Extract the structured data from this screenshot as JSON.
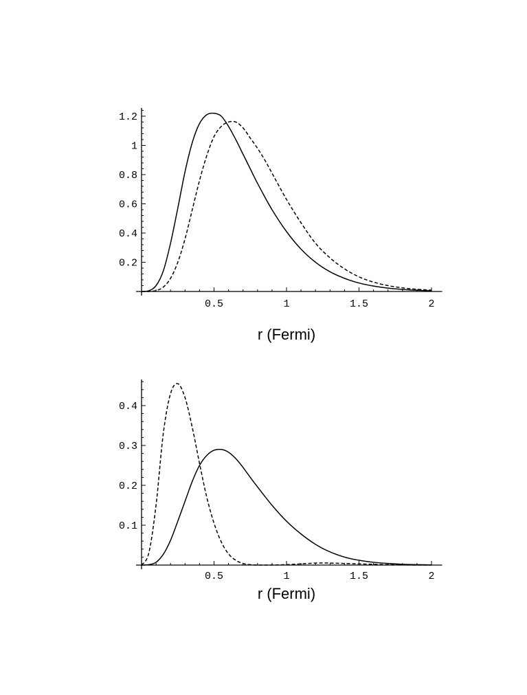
{
  "chart_data": [
    {
      "type": "line",
      "title": "",
      "xlabel": "r (Fermi)",
      "ylabel": "",
      "xlim": [
        0,
        2.05
      ],
      "ylim": [
        0,
        1.25
      ],
      "x_ticks": [
        0.5,
        1,
        1.5,
        2
      ],
      "x_tick_labels": [
        "0.5",
        "1",
        "1.5",
        "2"
      ],
      "y_ticks": [
        0.2,
        0.4,
        0.6,
        0.8,
        1,
        1.2
      ],
      "y_tick_labels": [
        "0.2",
        "0.4",
        "0.6",
        "0.8",
        "1",
        "1.2"
      ],
      "grid": false,
      "series": [
        {
          "style": "solid",
          "x": [
            0,
            0.05,
            0.1,
            0.15,
            0.2,
            0.25,
            0.3,
            0.35,
            0.4,
            0.45,
            0.5,
            0.55,
            0.6,
            0.65,
            0.7,
            0.75,
            0.8,
            0.9,
            1.0,
            1.1,
            1.2,
            1.3,
            1.4,
            1.5,
            1.6,
            1.7,
            1.8,
            1.9,
            2.0
          ],
          "y": [
            0,
            0.005,
            0.04,
            0.14,
            0.33,
            0.57,
            0.82,
            1.02,
            1.15,
            1.21,
            1.22,
            1.2,
            1.13,
            1.04,
            0.94,
            0.84,
            0.74,
            0.56,
            0.41,
            0.29,
            0.2,
            0.135,
            0.09,
            0.058,
            0.037,
            0.023,
            0.014,
            0.008,
            0.004
          ]
        },
        {
          "style": "dashed",
          "x": [
            0,
            0.05,
            0.1,
            0.15,
            0.2,
            0.25,
            0.3,
            0.35,
            0.4,
            0.45,
            0.5,
            0.55,
            0.6,
            0.65,
            0.7,
            0.75,
            0.8,
            0.85,
            0.9,
            1.0,
            1.1,
            1.2,
            1.3,
            1.4,
            1.5,
            1.6,
            1.7,
            1.8,
            1.9,
            2.0
          ],
          "y": [
            0,
            0.0,
            0.006,
            0.03,
            0.09,
            0.2,
            0.36,
            0.56,
            0.76,
            0.93,
            1.06,
            1.13,
            1.16,
            1.16,
            1.12,
            1.05,
            0.98,
            0.9,
            0.81,
            0.63,
            0.47,
            0.33,
            0.23,
            0.155,
            0.1,
            0.064,
            0.04,
            0.025,
            0.015,
            0.009
          ]
        }
      ]
    },
    {
      "type": "line",
      "title": "",
      "xlabel": "r (Fermi)",
      "ylabel": "",
      "xlim": [
        0,
        2.05
      ],
      "ylim": [
        0,
        0.47
      ],
      "x_ticks": [
        0.5,
        1,
        1.5,
        2
      ],
      "x_tick_labels": [
        "0.5",
        "1",
        "1.5",
        "2"
      ],
      "y_ticks": [
        0.1,
        0.2,
        0.3,
        0.4
      ],
      "y_tick_labels": [
        "0.1",
        "0.2",
        "0.3",
        "0.4"
      ],
      "grid": false,
      "series": [
        {
          "style": "solid",
          "x": [
            0,
            0.05,
            0.1,
            0.15,
            0.2,
            0.25,
            0.3,
            0.35,
            0.4,
            0.45,
            0.5,
            0.55,
            0.6,
            0.65,
            0.7,
            0.75,
            0.8,
            0.9,
            1.0,
            1.1,
            1.2,
            1.3,
            1.4,
            1.5,
            1.6,
            1.7,
            1.8,
            1.9,
            2.0
          ],
          "y": [
            0,
            0.001,
            0.007,
            0.027,
            0.062,
            0.11,
            0.16,
            0.21,
            0.25,
            0.275,
            0.288,
            0.29,
            0.283,
            0.267,
            0.245,
            0.22,
            0.196,
            0.15,
            0.11,
            0.078,
            0.052,
            0.033,
            0.02,
            0.012,
            0.007,
            0.004,
            0.002,
            0.001,
            0.0005
          ]
        },
        {
          "style": "dashed",
          "x": [
            0,
            0.05,
            0.1,
            0.15,
            0.2,
            0.25,
            0.3,
            0.35,
            0.4,
            0.45,
            0.5,
            0.55,
            0.6,
            0.65,
            0.7,
            0.75,
            0.8,
            0.85,
            0.9,
            1.0,
            1.1,
            1.2,
            1.3,
            1.4,
            1.5,
            1.6,
            1.7,
            1.8,
            1.9,
            2.0
          ],
          "y": [
            0,
            0.03,
            0.15,
            0.33,
            0.43,
            0.455,
            0.42,
            0.345,
            0.255,
            0.17,
            0.105,
            0.058,
            0.028,
            0.012,
            0.004,
            0.001,
            0.0,
            0.0,
            0.0,
            0.001,
            0.003,
            0.005,
            0.005,
            0.004,
            0.003,
            0.002,
            0.001,
            0.0005,
            0.0,
            0.0
          ]
        }
      ]
    }
  ]
}
